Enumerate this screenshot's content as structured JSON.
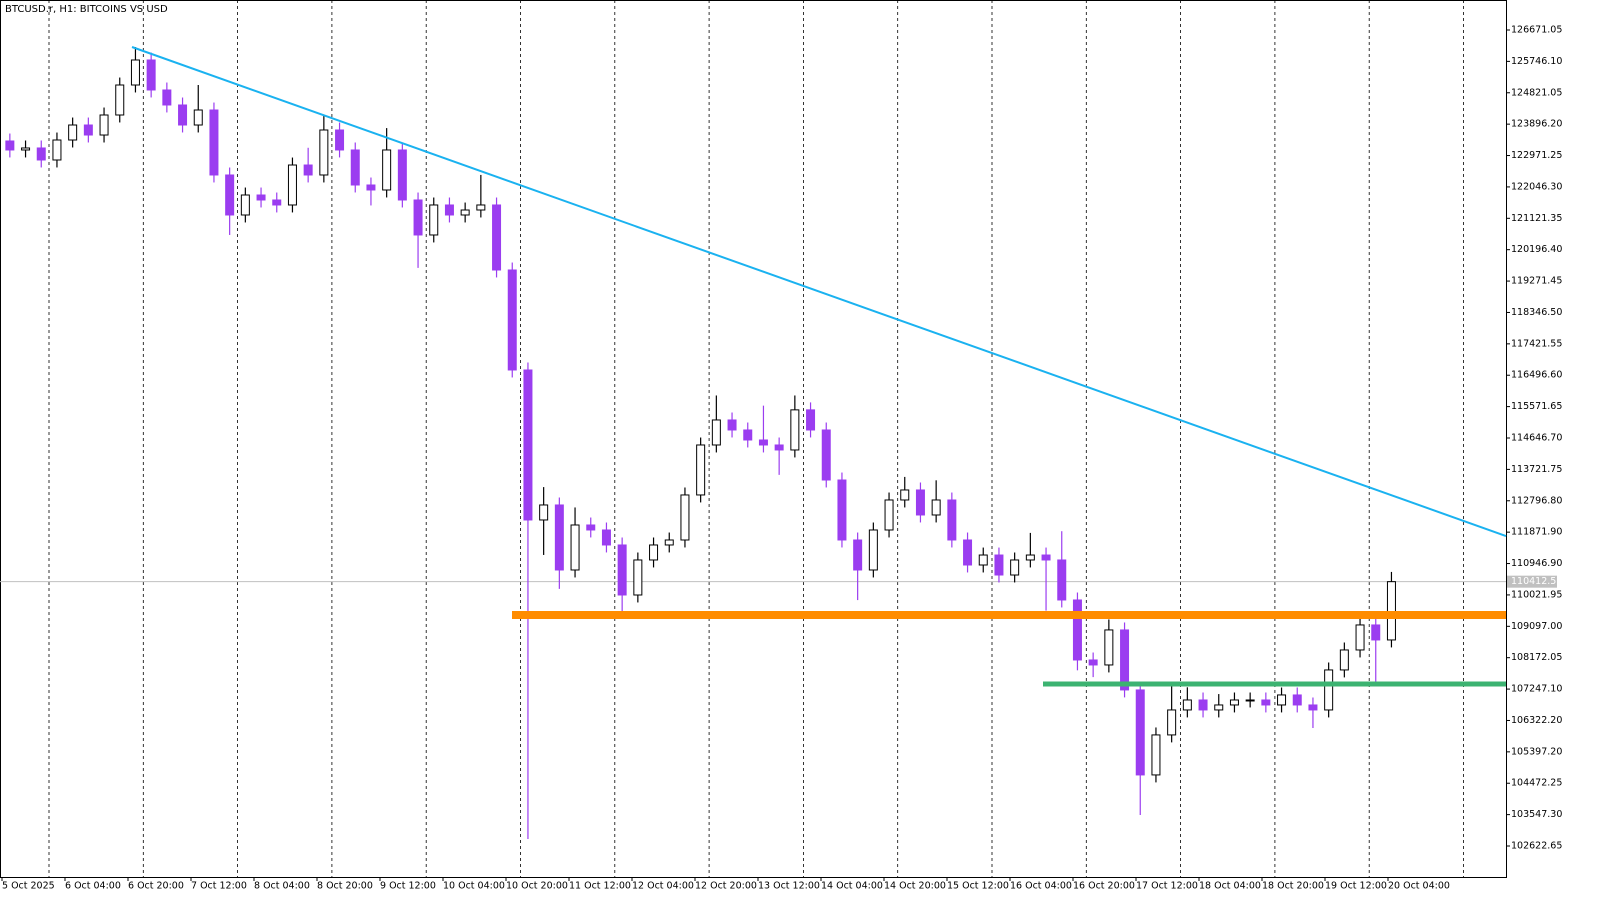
{
  "chart_data": {
    "type": "candlestick",
    "title": "BTCUSD.r, H1:  BITCOINS VS USD",
    "bull_color": "#000000",
    "bear_color": "#9b3df0",
    "open": [
      123400,
      123135,
      123194,
      122840,
      123429,
      123871,
      123576,
      124166,
      125050,
      125787,
      124903,
      124461,
      123871,
      124313,
      122398,
      121219,
      121808,
      121661,
      121514,
      122692,
      122398,
      123724,
      123135,
      122103,
      121956,
      123135,
      121661,
      120630,
      121514,
      121219,
      121366,
      121514,
      119598,
      116651,
      112231,
      112673,
      110757,
      112083,
      111936,
      111494,
      110020,
      111052,
      111494,
      111641,
      112968,
      114441,
      115178,
      114883,
      114588,
      114441,
      114294,
      115476,
      114883,
      113409,
      111641,
      110757,
      111936,
      112820,
      113115,
      112378,
      112820,
      111641,
      110904,
      111198,
      110609,
      111052,
      111198,
      111052,
      109873,
      108105,
      107958,
      108990,
      107222,
      104717,
      105896,
      106632,
      106926,
      106632,
      106779,
      106926,
      106926,
      106779,
      107074,
      106779,
      106632,
      107811,
      108400,
      109137,
      108695
    ],
    "high": [
      123620,
      123414,
      123414,
      123649,
      124091,
      124091,
      124386,
      125270,
      126170,
      126007,
      125123,
      124681,
      125050,
      124533,
      122618,
      122028,
      122028,
      121881,
      122912,
      123200,
      124170,
      123944,
      123355,
      122323,
      123780,
      123355,
      121881,
      121734,
      121734,
      121586,
      122400,
      121734,
      119818,
      116871,
      113200,
      112893,
      112600,
      112303,
      112156,
      111714,
      111272,
      111714,
      111861,
      113188,
      114661,
      115900,
      115398,
      115103,
      115600,
      114661,
      115900,
      115696,
      115103,
      113629,
      111861,
      112156,
      113040,
      113500,
      113335,
      113400,
      113040,
      111861,
      111418,
      111418,
      111272,
      111850,
      111418,
      111900,
      110093,
      108325,
      109300,
      109210,
      107442,
      106116,
      107400,
      107300,
      107146,
      107100,
      107146,
      107146,
      107146,
      107294,
      107294,
      106999,
      108031,
      108620,
      109500,
      109357,
      110700
    ],
    "low": [
      122915,
      122915,
      122620,
      122620,
      123209,
      123356,
      123356,
      123946,
      124830,
      124683,
      124241,
      123651,
      123651,
      122178,
      120630,
      120999,
      121441,
      121294,
      121294,
      122178,
      122178,
      122915,
      121883,
      121500,
      121736,
      121441,
      119660,
      120410,
      120999,
      120999,
      121146,
      119378,
      116431,
      102830,
      111200,
      110200,
      110537,
      111716,
      111274,
      109520,
      109800,
      110832,
      111274,
      111421,
      112748,
      114221,
      114663,
      114368,
      114221,
      113560,
      114074,
      114663,
      113189,
      111421,
      109870,
      110537,
      111716,
      112600,
      112158,
      112158,
      111421,
      110684,
      110684,
      110389,
      110389,
      110832,
      109560,
      109653,
      107800,
      107600,
      107738,
      107002,
      103537,
      104497,
      105676,
      106412,
      106412,
      106412,
      106559,
      106706,
      106559,
      106559,
      106559,
      106100,
      106412,
      107591,
      108180,
      107368,
      108475
    ],
    "close": [
      123135,
      123194,
      122840,
      123429,
      123871,
      123576,
      124166,
      125050,
      125787,
      124903,
      124461,
      123871,
      124313,
      122398,
      121219,
      121808,
      121661,
      121514,
      122692,
      122398,
      123724,
      123135,
      122103,
      121956,
      123135,
      121661,
      120630,
      121514,
      121219,
      121366,
      121514,
      119598,
      116651,
      112231,
      112673,
      110757,
      112083,
      111936,
      111494,
      110020,
      111052,
      111494,
      111641,
      112968,
      114441,
      115178,
      114883,
      114588,
      114441,
      114294,
      115476,
      114883,
      113409,
      111641,
      110757,
      111936,
      112820,
      113115,
      112378,
      112820,
      111641,
      110904,
      111198,
      110609,
      111052,
      111198,
      111052,
      109873,
      108105,
      107958,
      108990,
      107222,
      104717,
      105896,
      106632,
      106926,
      106632,
      106779,
      106926,
      106926,
      106779,
      107074,
      106779,
      106632,
      107811,
      108400,
      109137,
      108695,
      110412.53
    ],
    "trendline": {
      "values": [
        126170,
        111758
      ],
      "color": "#1ab2f0"
    },
    "levels": [
      {
        "value": 109430,
        "color": "#ff8c00"
      },
      {
        "value": 107396,
        "color": "#3cb371"
      }
    ],
    "last_price_color": "#c0c0c0",
    "xticks": [
      "5 Oct 2025",
      "6 Oct 04:00",
      "6 Oct 20:00",
      "7 Oct 12:00",
      "8 Oct 04:00",
      "8 Oct 20:00",
      "9 Oct 12:00",
      "10 Oct 04:00",
      "10 Oct 20:00",
      "11 Oct 12:00",
      "12 Oct 04:00",
      "12 Oct 20:00",
      "13 Oct 12:00",
      "14 Oct 04:00",
      "14 Oct 20:00",
      "15 Oct 12:00",
      "16 Oct 04:00",
      "16 Oct 20:00",
      "17 Oct 12:00",
      "18 Oct 04:00",
      "18 Oct 20:00",
      "19 Oct 12:00",
      "20 Oct 04:00"
    ],
    "ylim": [
      101709,
      127555
    ],
    "yticks": [
      126671.05,
      {
        "value": 125746.1,
        "label": "125746.10"
      },
      124821.05,
      {
        "value": 123896.2,
        "label": "123896.20"
      },
      122971.25,
      {
        "value": 122046.3,
        "label": "122046.30"
      },
      121121.35,
      {
        "value": 120196.4,
        "label": "120196.40"
      },
      119271.45,
      {
        "value": 118346.5,
        "label": "118346.50"
      },
      117421.55,
      {
        "value": 116496.6,
        "label": "116496.60"
      },
      115571.65,
      {
        "value": 114646.7,
        "label": "114646.70"
      },
      113721.75,
      {
        "value": 112796.8,
        "label": "112796.80"
      },
      {
        "value": 111871.9,
        "label": "111871.90"
      },
      {
        "value": 110946.9,
        "label": "110946.90"
      },
      110021.95,
      {
        "value": 109097,
        "label": "109097.00"
      },
      108172.05,
      {
        "value": 107247.1,
        "label": "107247.10"
      },
      {
        "value": 106322.2,
        "label": "106322.20"
      },
      {
        "value": 105397.2,
        "label": "105397.20"
      },
      104472.25,
      {
        "value": 103547.3,
        "label": "103547.30"
      },
      102622.65
    ]
  }
}
